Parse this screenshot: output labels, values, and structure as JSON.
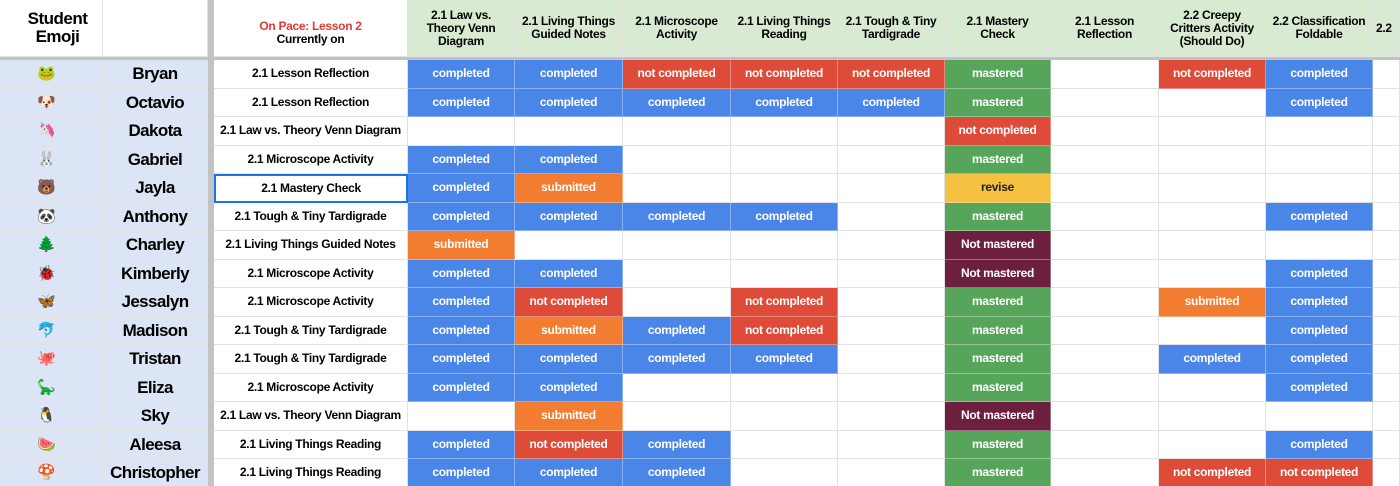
{
  "header": {
    "student": "Student Emoji",
    "on_pace": "On Pace: Lesson 2",
    "currently_on": "Currently on",
    "columns": [
      "2.1 Law vs. Theory Venn Diagram",
      "2.1 Living Things Guided Notes",
      "2.1 Microscope Activity",
      "2.1 Living Things Reading",
      "2.1 Tough & Tiny Tardigrade",
      "2.1 Mastery Check",
      "2.1 Lesson Reflection",
      "2.2 Creepy Critters Activity (Should Do)",
      "2.2 Classification Foldable",
      "2.2"
    ]
  },
  "rows": [
    {
      "emoji": "🐸",
      "name": "Bryan",
      "current": "2.1 Lesson Reflection",
      "cells": [
        "completed",
        "completed",
        "not completed",
        "not completed",
        "not completed",
        "mastered",
        null,
        "not completed",
        "completed",
        null
      ]
    },
    {
      "emoji": "🐶",
      "name": "Octavio",
      "current": "2.1 Lesson Reflection",
      "cells": [
        "completed",
        "completed",
        "completed",
        "completed",
        "completed",
        "mastered",
        null,
        null,
        "completed",
        null
      ]
    },
    {
      "emoji": "🦄",
      "name": "Dakota",
      "current": "2.1 Law vs. Theory Venn Diagram",
      "cells": [
        null,
        null,
        null,
        null,
        null,
        "not completed",
        null,
        null,
        null,
        null
      ]
    },
    {
      "emoji": "🐰",
      "name": "Gabriel",
      "current": "2.1 Microscope Activity",
      "cells": [
        "completed",
        "completed",
        null,
        null,
        null,
        "mastered",
        null,
        null,
        null,
        null
      ]
    },
    {
      "emoji": "🐻",
      "name": "Jayla",
      "current": "2.1 Mastery Check",
      "cells": [
        "completed",
        "submitted",
        null,
        null,
        null,
        "revise",
        null,
        null,
        null,
        null
      ]
    },
    {
      "emoji": "🐼",
      "name": "Anthony",
      "current": "2.1 Tough & Tiny Tardigrade",
      "cells": [
        "completed",
        "completed",
        "completed",
        "completed",
        null,
        "mastered",
        null,
        null,
        "completed",
        null
      ]
    },
    {
      "emoji": "🌲",
      "name": "Charley",
      "current": "2.1 Living Things Guided Notes",
      "cells": [
        "submitted",
        null,
        null,
        null,
        null,
        "Not mastered",
        null,
        null,
        null,
        null
      ]
    },
    {
      "emoji": "🐞",
      "name": "Kimberly",
      "current": "2.1 Microscope Activity",
      "cells": [
        "completed",
        "completed",
        null,
        null,
        null,
        "Not mastered",
        null,
        null,
        "completed",
        null
      ]
    },
    {
      "emoji": "🦋",
      "name": "Jessalyn",
      "current": "2.1 Microscope Activity",
      "cells": [
        "completed",
        "not completed",
        null,
        "not completed",
        null,
        "mastered",
        null,
        "submitted",
        "completed",
        null
      ]
    },
    {
      "emoji": "🐬",
      "name": "Madison",
      "current": "2.1 Tough & Tiny Tardigrade",
      "cells": [
        "completed",
        "submitted",
        "completed",
        "not completed",
        null,
        "mastered",
        null,
        null,
        "completed",
        null
      ]
    },
    {
      "emoji": "🐙",
      "name": "Tristan",
      "current": "2.1 Tough & Tiny Tardigrade",
      "cells": [
        "completed",
        "completed",
        "completed",
        "completed",
        null,
        "mastered",
        null,
        "completed",
        "completed",
        null
      ]
    },
    {
      "emoji": "🦕",
      "name": "Eliza",
      "current": "2.1 Microscope Activity",
      "cells": [
        "completed",
        "completed",
        null,
        null,
        null,
        "mastered",
        null,
        null,
        "completed",
        null
      ]
    },
    {
      "emoji": "🐧",
      "name": "Sky",
      "current": "2.1 Law vs. Theory Venn Diagram",
      "cells": [
        null,
        "submitted",
        null,
        null,
        null,
        "Not mastered",
        null,
        null,
        null,
        null
      ]
    },
    {
      "emoji": "🍉",
      "name": "Aleesa",
      "current": "2.1 Living Things Reading",
      "cells": [
        "completed",
        "not completed",
        "completed",
        null,
        null,
        "mastered",
        null,
        null,
        "completed",
        null
      ]
    },
    {
      "emoji": "🍄",
      "name": "Christopher",
      "current": "2.1 Living Things Reading",
      "cells": [
        "completed",
        "completed",
        "completed",
        null,
        null,
        "mastered",
        null,
        "not completed",
        "not completed",
        null
      ]
    }
  ],
  "status_colors": {
    "completed": {
      "bg": "#4a86e8",
      "fg": "#ffffff"
    },
    "not completed": {
      "bg": "#de4b39",
      "fg": "#ffffff"
    },
    "submitted": {
      "bg": "#f27c2f",
      "fg": "#ffffff"
    },
    "mastered": {
      "bg": "#57a55a",
      "fg": "#ffffff"
    },
    "revise": {
      "bg": "#f4c141",
      "fg": "#222222"
    },
    "Not mastered": {
      "bg": "#6d1f40",
      "fg": "#ffffff"
    }
  }
}
